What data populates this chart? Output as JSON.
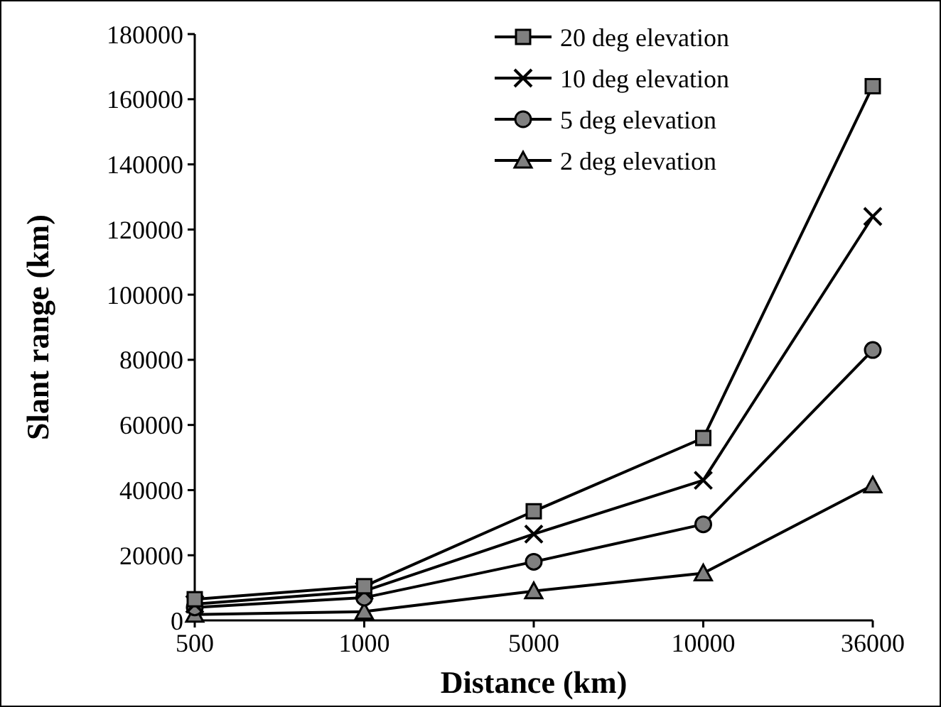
{
  "chart_data": {
    "type": "line",
    "xlabel": "Distance (km)",
    "ylabel": "Slant range (km)",
    "categories": [
      "500",
      "1000",
      "5000",
      "10000",
      "36000"
    ],
    "ylim": [
      0,
      180000
    ],
    "yticks": [
      0,
      20000,
      40000,
      60000,
      80000,
      100000,
      120000,
      140000,
      160000,
      180000
    ],
    "grid": false,
    "legend": "top right",
    "line_style": "solid",
    "series": [
      {
        "name": "20 deg elevation",
        "color": "#808080",
        "marker": "square",
        "values": [
          6500,
          10500,
          33500,
          56000,
          164000
        ]
      },
      {
        "name": "10 deg elevation",
        "color": "#000000",
        "marker": "cross",
        "values": [
          5000,
          9000,
          26500,
          43000,
          124000
        ]
      },
      {
        "name": "5 deg elevation",
        "color": "#808080",
        "marker": "circle",
        "values": [
          4000,
          7000,
          18000,
          29500,
          83000
        ]
      },
      {
        "name": "2 deg elevation",
        "color": "#808080",
        "marker": "triangle",
        "values": [
          1800,
          2700,
          9000,
          14500,
          41500
        ]
      }
    ]
  }
}
